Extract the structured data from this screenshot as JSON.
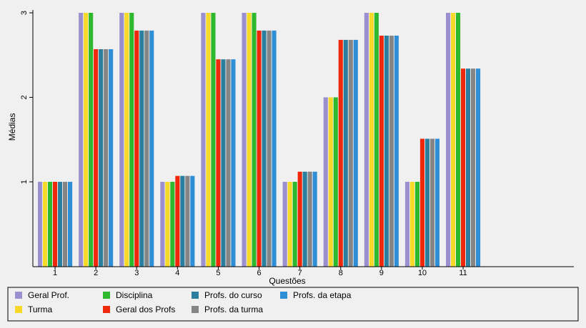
{
  "chart_data": {
    "type": "bar",
    "title": "",
    "xlabel": "Questões",
    "ylabel": "Médias",
    "categories": [
      "1",
      "2",
      "3",
      "4",
      "5",
      "6",
      "7",
      "8",
      "9",
      "10",
      "11"
    ],
    "y_ticks": [
      "1",
      "2",
      "3"
    ],
    "ylim": [
      0,
      3
    ],
    "grid": false,
    "legend_position": "bottom",
    "series": [
      {
        "name": "Geral Prof.",
        "color": "#9b8fcf",
        "values": [
          1,
          3,
          3,
          1,
          3,
          3,
          1,
          2,
          3,
          1,
          3
        ]
      },
      {
        "name": "Turma",
        "color": "#f7d92a",
        "values": [
          1,
          3,
          3,
          1,
          3,
          3,
          1,
          2,
          3,
          1,
          3
        ]
      },
      {
        "name": "Disciplina",
        "color": "#2eb82e",
        "values": [
          1,
          3,
          3,
          1,
          3,
          3,
          1,
          2,
          3,
          1,
          3
        ]
      },
      {
        "name": "Geral dos Profs",
        "color": "#f0280a",
        "values": [
          1,
          2.57,
          2.79,
          1.07,
          2.45,
          2.79,
          1.12,
          2.68,
          2.73,
          1.51,
          2.34
        ]
      },
      {
        "name": "Profs. do curso",
        "color": "#2a7f9e",
        "values": [
          1,
          2.57,
          2.79,
          1.07,
          2.45,
          2.79,
          1.12,
          2.68,
          2.73,
          1.51,
          2.34
        ]
      },
      {
        "name": "Profs. da turma",
        "color": "#858585",
        "values": [
          1,
          2.57,
          2.79,
          1.07,
          2.45,
          2.79,
          1.12,
          2.68,
          2.73,
          1.51,
          2.34
        ]
      },
      {
        "name": "Profs. da etapa",
        "color": "#2f8fd6",
        "values": [
          1,
          2.57,
          2.79,
          1.07,
          2.45,
          2.79,
          1.12,
          2.68,
          2.73,
          1.51,
          2.34
        ]
      }
    ]
  }
}
